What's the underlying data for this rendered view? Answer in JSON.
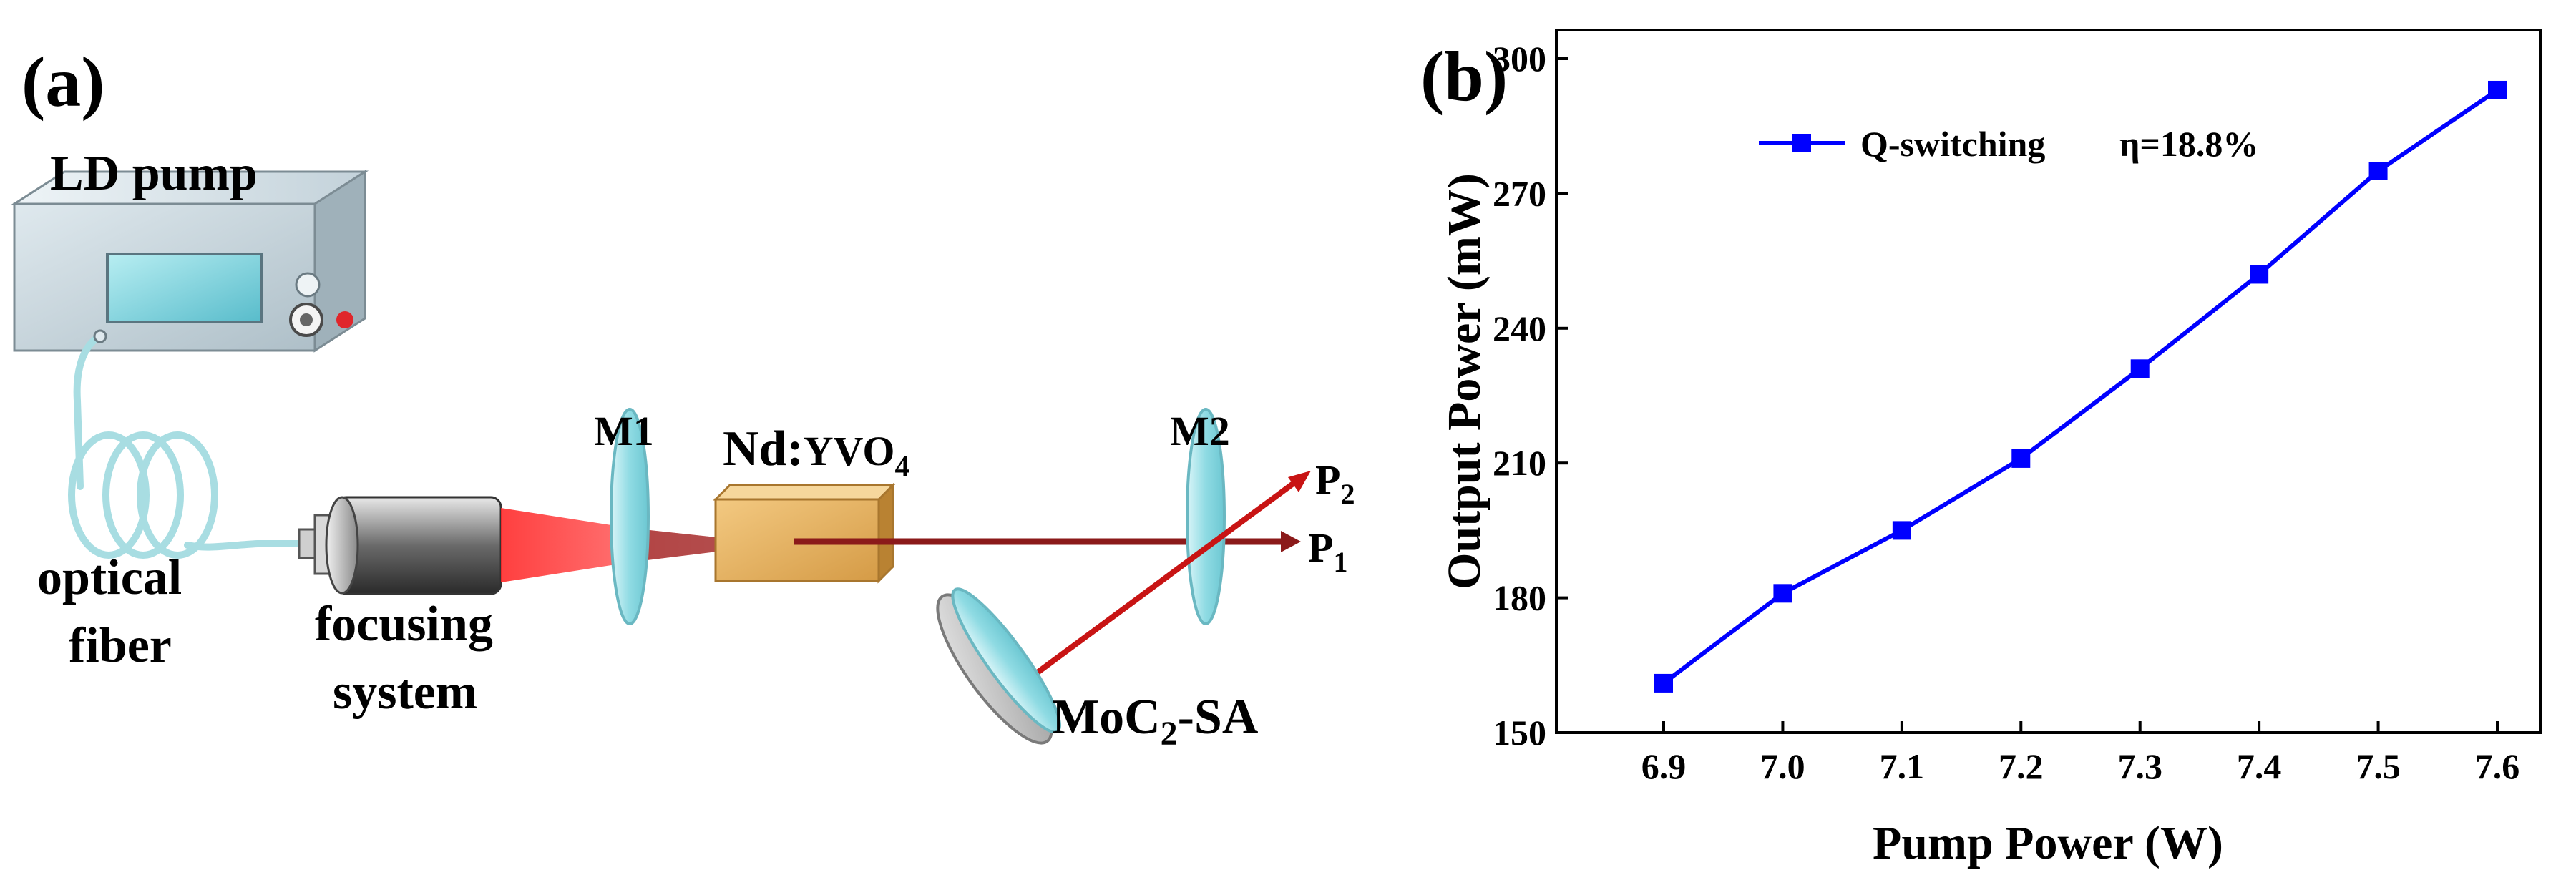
{
  "panel_a": {
    "label": "(a)",
    "ld_pump": "LD pump",
    "optical_fiber": [
      "optical",
      "fiber"
    ],
    "focusing_system": [
      "focusing",
      "system"
    ],
    "m1": "M1",
    "crystal_prefix": "Nd:",
    "crystal_main": "YVO",
    "crystal_sub": "4",
    "m2": "M2",
    "p2_main": "P",
    "p2_sub": "2",
    "p1_main": "P",
    "p1_sub": "1",
    "sa_pre": "MoC",
    "sa_sub": "2",
    "sa_post": "-SA",
    "colors": {
      "device_body": "#c9d7de",
      "screen": "#7fd3dd",
      "fiber": "#a8dde2",
      "pump_beam": "#ff3b3b",
      "laser": "#8b1a1a",
      "crystal": "#e3b060",
      "mirror": "#a6e3ea"
    }
  },
  "panel_b": {
    "label": "(b)",
    "legend": "Q-switching",
    "eta": "η=18.8%",
    "chart_data": {
      "type": "line",
      "xlabel": "Pump Power (W)",
      "ylabel": "Output Power (mW)",
      "xlim": [
        6.9,
        7.6
      ],
      "ylim": [
        150,
        300
      ],
      "xticks": [
        "6.9",
        "7.0",
        "7.1",
        "7.2",
        "7.3",
        "7.4",
        "7.5",
        "7.6"
      ],
      "yticks": [
        "150",
        "180",
        "210",
        "240",
        "270",
        "300"
      ],
      "legend_position": "top-left",
      "grid": false,
      "color": "#0000ff",
      "series": [
        {
          "name": "Q-switching",
          "x": [
            6.9,
            7.0,
            7.1,
            7.2,
            7.3,
            7.4,
            7.5,
            7.6
          ],
          "y": [
            161,
            181,
            195,
            211,
            231,
            252,
            275,
            293
          ]
        }
      ]
    }
  }
}
